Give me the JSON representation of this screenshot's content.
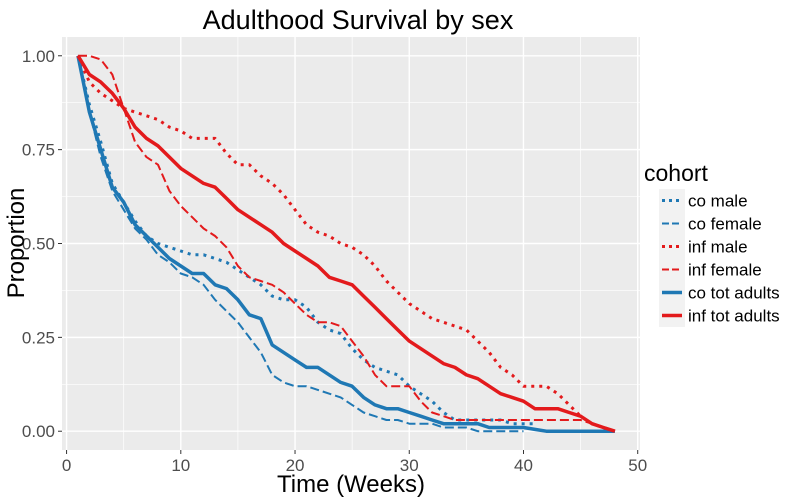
{
  "chart_data": {
    "type": "line",
    "title": "Adulthood Survival by sex",
    "xlabel": "Time (Weeks)",
    "ylabel": "Proportion",
    "xlim": [
      -0.4,
      50.2
    ],
    "ylim": [
      -0.05,
      1.05
    ],
    "x_ticks": [
      0,
      10,
      20,
      30,
      40,
      50
    ],
    "x_tick_labels": [
      "0",
      "10",
      "20",
      "30",
      "40",
      "50"
    ],
    "y_ticks": [
      0,
      0.25,
      0.5,
      0.75,
      1
    ],
    "y_tick_labels": [
      "0.00",
      "0.25",
      "0.50",
      "0.75",
      "1.00"
    ],
    "grid": true,
    "legend": {
      "title": "cohort",
      "position": "right"
    },
    "series": [
      {
        "name": "co male",
        "color": "#1f78b4",
        "linetype": "dotted",
        "linewidth": 3,
        "x": [
          1,
          2,
          3,
          4,
          5,
          6,
          7,
          8,
          9,
          10,
          11,
          12,
          13,
          14,
          15,
          16,
          17,
          18,
          19,
          20,
          21,
          22,
          23,
          24,
          25,
          26,
          27,
          28,
          29,
          30,
          31,
          32,
          33,
          34,
          35,
          36,
          37,
          38,
          39,
          40,
          41
        ],
        "y": [
          1.0,
          0.87,
          0.77,
          0.66,
          0.61,
          0.56,
          0.52,
          0.5,
          0.49,
          0.48,
          0.47,
          0.47,
          0.46,
          0.45,
          0.43,
          0.41,
          0.39,
          0.36,
          0.35,
          0.35,
          0.33,
          0.29,
          0.27,
          0.26,
          0.22,
          0.19,
          0.17,
          0.16,
          0.15,
          0.12,
          0.1,
          0.08,
          0.05,
          0.03,
          0.03,
          0.03,
          0.03,
          0.03,
          0.02,
          0.02,
          0.02
        ]
      },
      {
        "name": "co female",
        "color": "#1f78b4",
        "linetype": "dashed",
        "linewidth": 2,
        "x": [
          1,
          2,
          3,
          4,
          5,
          6,
          7,
          8,
          9,
          10,
          11,
          12,
          13,
          14,
          15,
          16,
          17,
          18,
          19,
          20,
          21,
          22,
          23,
          24,
          25,
          26,
          27,
          28,
          29,
          30,
          31,
          32,
          33,
          34,
          35,
          36,
          37,
          38,
          39,
          40
        ],
        "y": [
          1.0,
          0.85,
          0.73,
          0.64,
          0.59,
          0.54,
          0.51,
          0.47,
          0.45,
          0.42,
          0.41,
          0.39,
          0.35,
          0.32,
          0.29,
          0.25,
          0.21,
          0.15,
          0.13,
          0.12,
          0.12,
          0.11,
          0.1,
          0.09,
          0.07,
          0.05,
          0.04,
          0.03,
          0.03,
          0.02,
          0.02,
          0.02,
          0.01,
          0.01,
          0.01,
          0.0,
          0.0,
          0.0,
          0.0,
          0.0
        ]
      },
      {
        "name": "inf male",
        "color": "#e31a1c",
        "linetype": "dotted",
        "linewidth": 3,
        "x": [
          1,
          2,
          3,
          4,
          5,
          6,
          7,
          8,
          9,
          10,
          11,
          12,
          13,
          14,
          15,
          16,
          17,
          18,
          19,
          20,
          21,
          22,
          23,
          24,
          25,
          26,
          27,
          28,
          29,
          30,
          31,
          32,
          33,
          34,
          35,
          36,
          37,
          38,
          39,
          40,
          41,
          42,
          43,
          44,
          45,
          46,
          47,
          48
        ],
        "y": [
          1.0,
          0.93,
          0.9,
          0.88,
          0.86,
          0.85,
          0.84,
          0.83,
          0.81,
          0.8,
          0.78,
          0.78,
          0.78,
          0.74,
          0.71,
          0.71,
          0.68,
          0.66,
          0.63,
          0.59,
          0.55,
          0.53,
          0.52,
          0.5,
          0.49,
          0.47,
          0.44,
          0.4,
          0.37,
          0.34,
          0.32,
          0.3,
          0.29,
          0.28,
          0.27,
          0.24,
          0.21,
          0.17,
          0.15,
          0.12,
          0.12,
          0.12,
          0.1,
          0.07,
          0.04,
          0.02,
          0.01,
          0.0
        ]
      },
      {
        "name": "inf female",
        "color": "#e31a1c",
        "linetype": "dashed",
        "linewidth": 2,
        "x": [
          1,
          2,
          3,
          4,
          5,
          6,
          7,
          8,
          9,
          10,
          11,
          12,
          13,
          14,
          15,
          16,
          17,
          18,
          19,
          20,
          21,
          22,
          23,
          24,
          25,
          26,
          27,
          28,
          29,
          30,
          31,
          32,
          33,
          34,
          35,
          36,
          37,
          38,
          39,
          40,
          41,
          42,
          43,
          44,
          45,
          46,
          47,
          48
        ],
        "y": [
          1.0,
          1.0,
          0.99,
          0.95,
          0.86,
          0.77,
          0.73,
          0.71,
          0.64,
          0.6,
          0.57,
          0.54,
          0.52,
          0.49,
          0.44,
          0.41,
          0.4,
          0.39,
          0.37,
          0.34,
          0.31,
          0.29,
          0.29,
          0.28,
          0.24,
          0.2,
          0.15,
          0.12,
          0.12,
          0.12,
          0.08,
          0.05,
          0.04,
          0.03,
          0.03,
          0.03,
          0.03,
          0.03,
          0.03,
          0.03,
          0.03,
          0.03,
          0.03,
          0.03,
          0.03,
          0.02,
          0.01,
          0.0
        ]
      },
      {
        "name": "co tot adults",
        "color": "#1f78b4",
        "linetype": "solid",
        "linewidth": 3.5,
        "x": [
          1,
          2,
          3,
          4,
          5,
          6,
          7,
          8,
          9,
          10,
          11,
          12,
          13,
          14,
          15,
          16,
          17,
          18,
          19,
          20,
          21,
          22,
          23,
          24,
          25,
          26,
          27,
          28,
          29,
          30,
          31,
          32,
          33,
          34,
          35,
          36,
          37,
          38,
          39,
          40,
          41,
          42,
          43,
          44,
          45,
          46,
          47,
          48
        ],
        "y": [
          1.0,
          0.85,
          0.75,
          0.65,
          0.61,
          0.55,
          0.52,
          0.49,
          0.46,
          0.44,
          0.42,
          0.42,
          0.39,
          0.38,
          0.35,
          0.31,
          0.3,
          0.23,
          0.21,
          0.19,
          0.17,
          0.17,
          0.15,
          0.13,
          0.12,
          0.09,
          0.07,
          0.06,
          0.06,
          0.05,
          0.04,
          0.03,
          0.02,
          0.02,
          0.02,
          0.02,
          0.01,
          0.01,
          0.01,
          0.01,
          0.005,
          0.0,
          0.0,
          0.0,
          0.0,
          0.0,
          0.0,
          0.0
        ]
      },
      {
        "name": "inf tot adults",
        "color": "#e31a1c",
        "linetype": "solid",
        "linewidth": 3.5,
        "x": [
          1,
          2,
          3,
          4,
          5,
          6,
          7,
          8,
          9,
          10,
          11,
          12,
          13,
          14,
          15,
          16,
          17,
          18,
          19,
          20,
          21,
          22,
          23,
          24,
          25,
          26,
          27,
          28,
          29,
          30,
          31,
          32,
          33,
          34,
          35,
          36,
          37,
          38,
          39,
          40,
          41,
          42,
          43,
          44,
          45,
          46,
          47,
          48
        ],
        "y": [
          1.0,
          0.95,
          0.93,
          0.9,
          0.86,
          0.81,
          0.78,
          0.76,
          0.73,
          0.7,
          0.68,
          0.66,
          0.65,
          0.62,
          0.59,
          0.57,
          0.55,
          0.53,
          0.5,
          0.48,
          0.46,
          0.44,
          0.41,
          0.4,
          0.39,
          0.36,
          0.33,
          0.3,
          0.27,
          0.24,
          0.22,
          0.2,
          0.18,
          0.17,
          0.15,
          0.14,
          0.12,
          0.1,
          0.09,
          0.08,
          0.06,
          0.06,
          0.06,
          0.05,
          0.04,
          0.02,
          0.01,
          0.0
        ]
      }
    ]
  }
}
